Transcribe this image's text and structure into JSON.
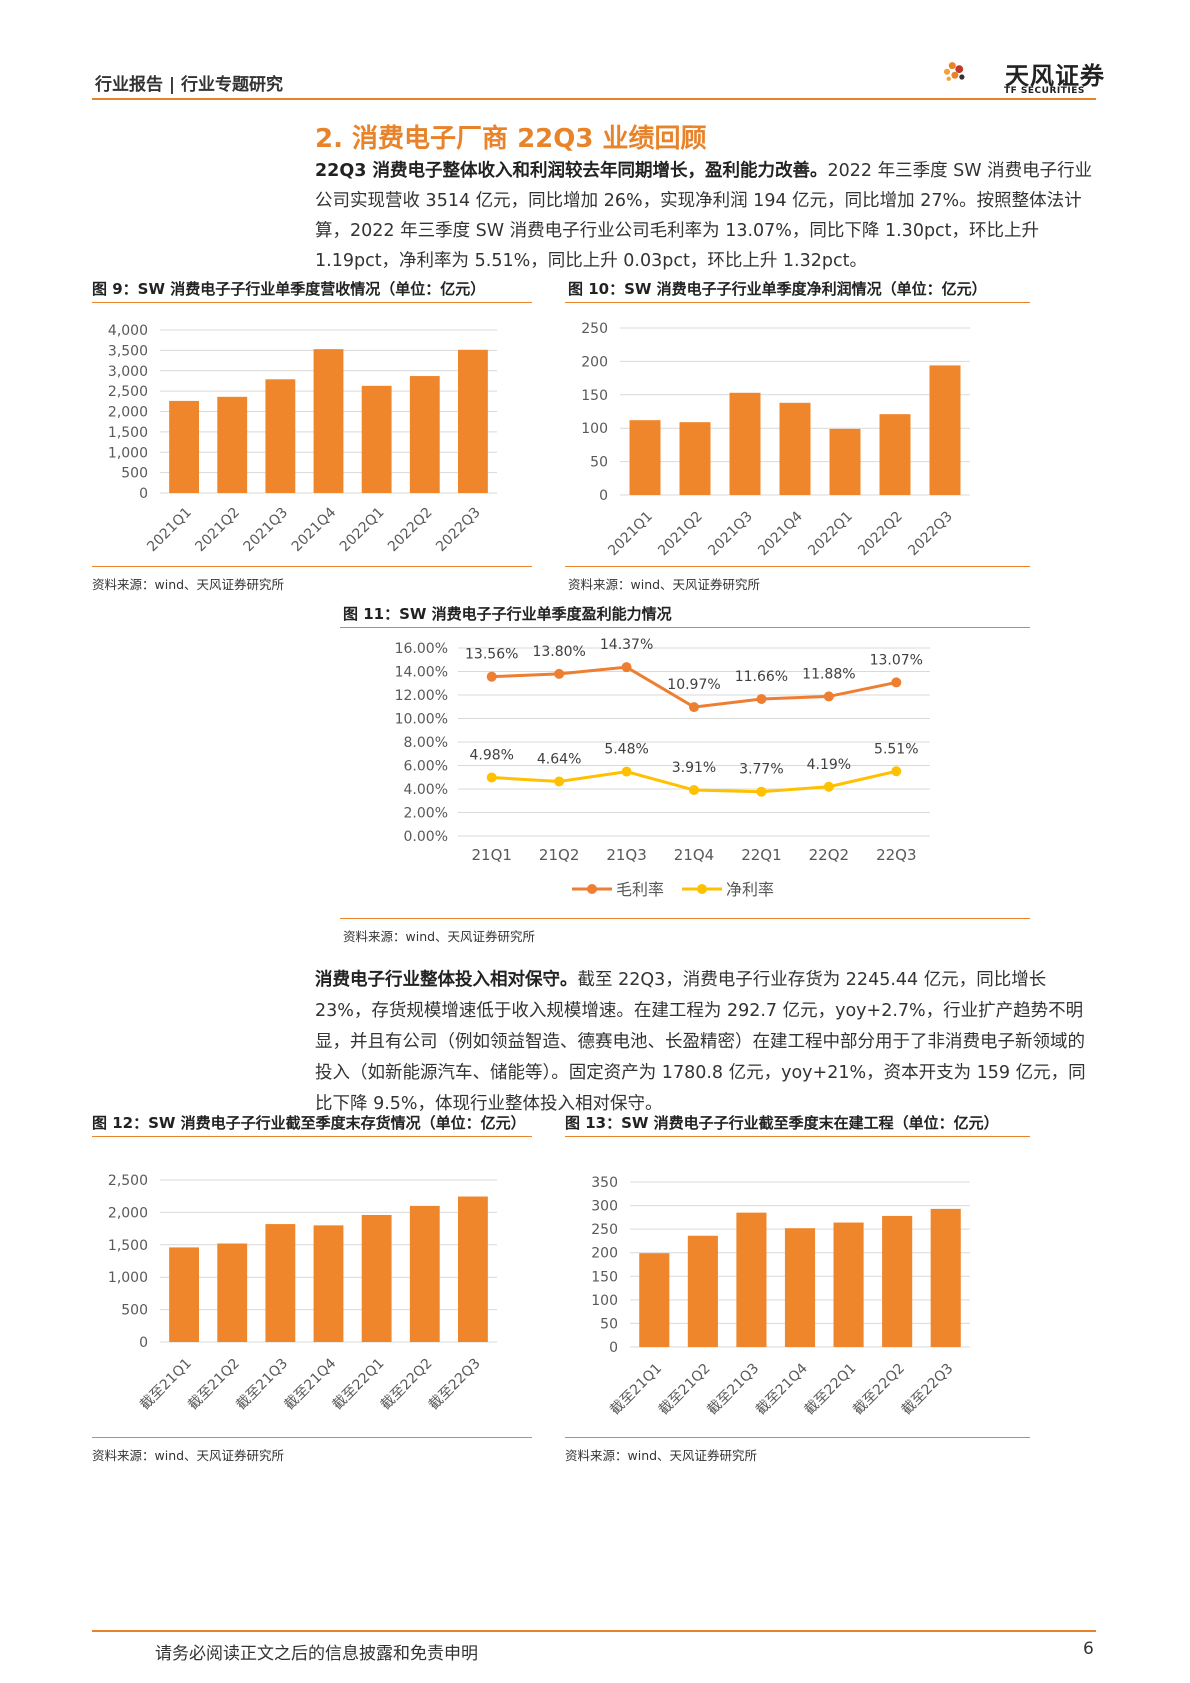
{
  "header": {
    "title": "行业报告 | 行业专题研究"
  },
  "logo": {
    "name": "天风证券",
    "sub": "TF SECURITIES"
  },
  "section": {
    "title": "2. 消费电子厂商 22Q3 业绩回顾"
  },
  "para1": {
    "bold": "22Q3 消费电子整体收入和利润较去年同期增长，盈利能力改善。",
    "text": "2022 年三季度 SW 消费电子行业公司实现营收 3514 亿元，同比增加 26%，实现净利润 194 亿元，同比增加 27%。按照整体法计算，2022 年三季度 SW 消费电子行业公司毛利率为 13.07%，同比下降 1.30pct，环比上升 1.19pct，净利率为 5.51%，同比上升 0.03pct，环比上升 1.32pct。"
  },
  "para2": {
    "bold": "消费电子行业整体投入相对保守。",
    "text": "截至 22Q3，消费电子行业存货为 2245.44 亿元，同比增长 23%，存货规模增速低于收入规模增速。在建工程为 292.7 亿元，yoy+2.7%，行业扩产趋势不明显，并且有公司（例如领益智造、德赛电池、长盈精密）在建工程中部分用于了非消费电子新领域的投入（如新能源汽车、储能等）。固定资产为 1780.8 亿元，yoy+21%，资本开支为 159 亿元，同比下降 9.5%，体现行业整体投入相对保守。"
  },
  "figures": {
    "f9": {
      "title": "图 9：SW 消费电子子行业单季度营收情况（单位：亿元）",
      "source": "资料来源：wind、天风证券研究所"
    },
    "f10": {
      "title": "图 10：SW 消费电子子行业单季度净利润情况（单位：亿元）",
      "source": "资料来源：wind、天风证券研究所"
    },
    "f11": {
      "title": "图 11：SW 消费电子子行业单季度盈利能力情况",
      "source": "资料来源：wind、天风证券研究所"
    },
    "f12": {
      "title": "图 12：SW 消费电子子行业截至季度末存货情况（单位：亿元）",
      "source": "资料来源：wind、天风证券研究所"
    },
    "f13": {
      "title": "图 13：SW 消费电子子行业截至季度末在建工程（单位：亿元）",
      "source": "资料来源：wind、天风证券研究所"
    }
  },
  "footer": {
    "text": "请务必阅读正文之后的信息披露和免责申明",
    "page": "6"
  },
  "colors": {
    "accent": "#E8832A",
    "bar": "#F0862B",
    "gross": "#EE7E32",
    "net": "#FFC000"
  },
  "chart_data": [
    {
      "id": "f9",
      "type": "bar",
      "categories": [
        "2021Q1",
        "2021Q2",
        "2021Q3",
        "2021Q4",
        "2022Q1",
        "2022Q2",
        "2022Q3"
      ],
      "values": [
        2260,
        2360,
        2790,
        3530,
        2630,
        2870,
        3514
      ],
      "ylim": [
        0,
        4000
      ],
      "yticks": [
        "0",
        "500",
        "1,000",
        "1,500",
        "2,000",
        "2,500",
        "3,000",
        "3,500",
        "4,000"
      ],
      "grid": true
    },
    {
      "id": "f10",
      "type": "bar",
      "categories": [
        "2021Q1",
        "2021Q2",
        "2021Q3",
        "2021Q4",
        "2022Q1",
        "2022Q2",
        "2022Q3"
      ],
      "values": [
        112,
        109,
        153,
        138,
        99,
        121,
        194
      ],
      "ylim": [
        0,
        250
      ],
      "yticks": [
        "0",
        "50",
        "100",
        "150",
        "200",
        "250"
      ],
      "grid": true
    },
    {
      "id": "f11",
      "type": "line",
      "categories": [
        "21Q1",
        "21Q2",
        "21Q3",
        "21Q4",
        "22Q1",
        "22Q2",
        "22Q3"
      ],
      "series": [
        {
          "name": "毛利率",
          "values": [
            13.56,
            13.8,
            14.37,
            10.97,
            11.66,
            11.88,
            13.07
          ],
          "labels": [
            "13.56%",
            "13.80%",
            "14.37%",
            "10.97%",
            "11.66%",
            "11.88%",
            "13.07%"
          ]
        },
        {
          "name": "净利率",
          "values": [
            4.98,
            4.64,
            5.48,
            3.91,
            3.77,
            4.19,
            5.51
          ],
          "labels": [
            "4.98%",
            "4.64%",
            "5.48%",
            "3.91%",
            "3.77%",
            "4.19%",
            "5.51%"
          ]
        }
      ],
      "ylim": [
        0,
        16
      ],
      "yticks": [
        "0.00%",
        "2.00%",
        "4.00%",
        "6.00%",
        "8.00%",
        "10.00%",
        "12.00%",
        "14.00%",
        "16.00%"
      ],
      "legend": "bottom",
      "grid": true
    },
    {
      "id": "f12",
      "type": "bar",
      "categories": [
        "截至21Q1",
        "截至21Q2",
        "截至21Q3",
        "截至21Q4",
        "截至22Q1",
        "截至22Q2",
        "截至22Q3"
      ],
      "values": [
        1460,
        1520,
        1820,
        1800,
        1960,
        2100,
        2245
      ],
      "ylim": [
        0,
        2500
      ],
      "yticks": [
        "0",
        "500",
        "1,000",
        "1,500",
        "2,000",
        "2,500"
      ],
      "grid": true
    },
    {
      "id": "f13",
      "type": "bar",
      "categories": [
        "截至21Q1",
        "截至21Q2",
        "截至21Q3",
        "截至21Q4",
        "截至22Q1",
        "截至22Q2",
        "截至22Q3"
      ],
      "values": [
        199,
        236,
        285,
        252,
        264,
        278,
        293
      ],
      "ylim": [
        0,
        350
      ],
      "yticks": [
        "0",
        "50",
        "100",
        "150",
        "200",
        "250",
        "300",
        "350"
      ],
      "grid": true
    }
  ]
}
